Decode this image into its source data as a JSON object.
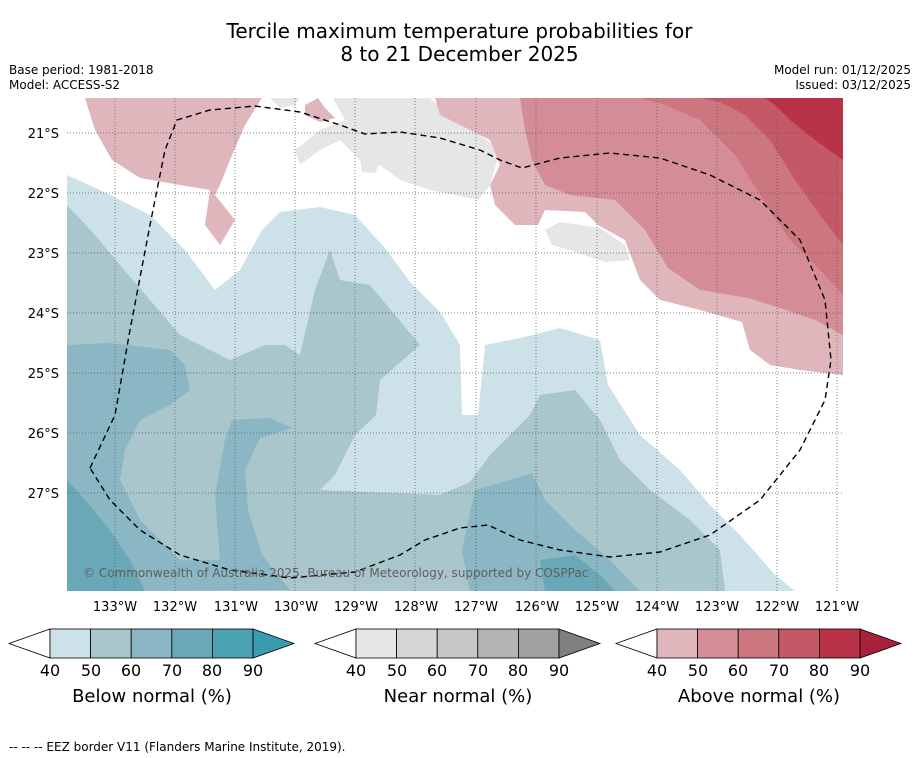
{
  "title": {
    "line1": "Tercile maximum temperature probabilities for",
    "line2": "8 to 21 December 2025"
  },
  "meta_left": {
    "base_period": "Base period: 1981-2018",
    "model": "Model: ACCESS-S2"
  },
  "meta_right": {
    "model_run": "Model run: 01/12/2025",
    "issued": "Issued: 03/12/2025"
  },
  "map": {
    "lat_labels": [
      "21°S",
      "22°S",
      "23°S",
      "24°S",
      "25°S",
      "26°S",
      "27°S"
    ],
    "lon_labels": [
      "133°W",
      "132°W",
      "131°W",
      "130°W",
      "129°W",
      "128°W",
      "127°W",
      "126°W",
      "125°W",
      "124°W",
      "123°W",
      "122°W",
      "121°W"
    ],
    "copyright": "© Commonwealth of Australia 2025, Bureau of Meteorology, supported by COSPPac"
  },
  "colors": {
    "below": [
      "#cde2e8",
      "#a8c6cc",
      "#8ab7c3",
      "#6aa8b8",
      "#4aa1b2"
    ],
    "near": [
      "#e6e6e6",
      "#d6d6d6",
      "#c6c6c6",
      "#b4b4b4",
      "#a0a0a0",
      "#7f7f7f"
    ],
    "above": [
      "#e0b6bd",
      "#d48d96",
      "#cc7680",
      "#c45866",
      "#b93247",
      "#a8213a"
    ]
  },
  "colorbars": [
    {
      "name": "below",
      "label": "Below normal (%)",
      "ticks": [
        "40",
        "50",
        "60",
        "70",
        "80",
        "90"
      ]
    },
    {
      "name": "near",
      "label": "Near normal (%)",
      "ticks": [
        "40",
        "50",
        "60",
        "70",
        "80",
        "90"
      ]
    },
    {
      "name": "above",
      "label": "Above normal (%)",
      "ticks": [
        "40",
        "50",
        "60",
        "70",
        "80",
        "90"
      ]
    }
  ],
  "footnote": "--  --  -- EEZ border V11 (Flanders Marine Institute, 2019)."
}
